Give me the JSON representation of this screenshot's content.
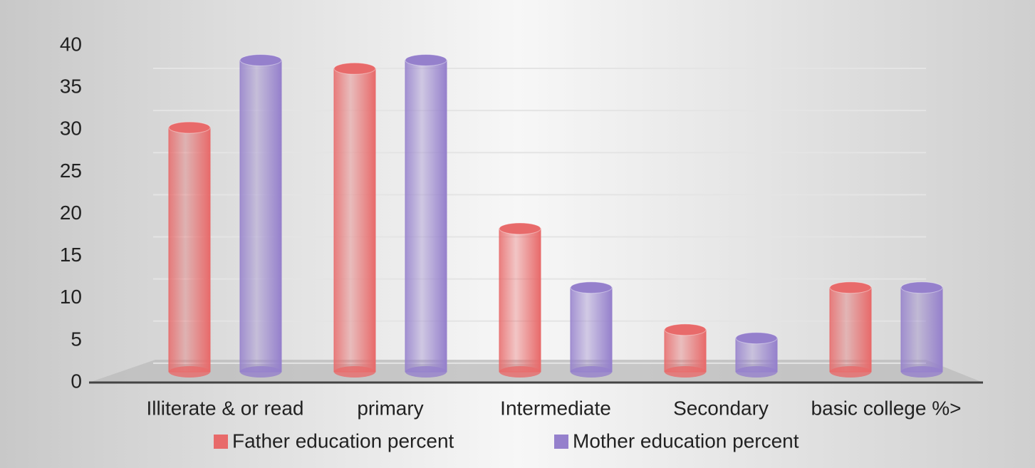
{
  "chart_data": {
    "type": "bar",
    "categories": [
      "Illiterate & or read",
      "primary",
      "Intermediate",
      "Secondary",
      "basic college %>"
    ],
    "series": [
      {
        "name": "Father education percent",
        "color": "#e86a6a",
        "values": [
          29,
          36,
          17,
          5,
          10
        ]
      },
      {
        "name": "Mother education percent",
        "color": "#9580cc",
        "values": [
          37,
          37,
          10,
          4,
          10
        ]
      }
    ],
    "ylim": [
      0,
      40
    ],
    "yticks": [
      0,
      5,
      10,
      15,
      20,
      25,
      30,
      35,
      40
    ],
    "grid": true
  }
}
